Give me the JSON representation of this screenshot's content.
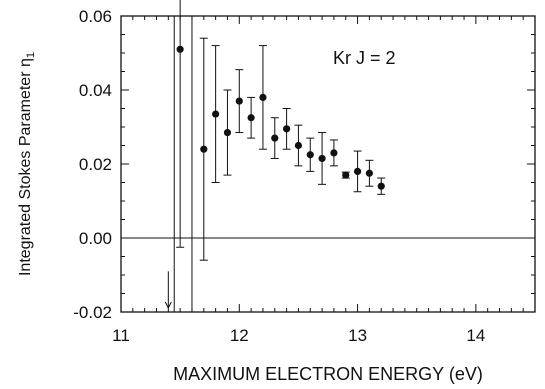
{
  "chart_data": {
    "type": "scatter",
    "title": "",
    "xlabel": "MAXIMUM ELECTRON ENERGY (eV)",
    "ylabel": "Integrated Stokes Parameter η",
    "ylabel_subscript": "1",
    "annotation": "Kr J = 2",
    "xlim": [
      11,
      14.5
    ],
    "ylim": [
      -0.02,
      0.06
    ],
    "x_ticks": [
      11,
      12,
      13,
      14
    ],
    "x_tick_labels": [
      "11",
      "12",
      "13",
      "14"
    ],
    "y_ticks": [
      -0.02,
      0,
      0.02,
      0.04,
      0.06
    ],
    "y_tick_labels": [
      "-0.02",
      "0.00",
      "0.02",
      "0.04",
      "0.06"
    ],
    "zero_line": true,
    "grid": false,
    "arrow_x": 11.4,
    "series": [
      {
        "x": [
          11.5,
          11.7,
          11.8,
          11.9,
          12.0,
          12.1,
          12.2,
          12.3,
          12.4,
          12.5,
          12.6,
          12.7,
          12.8,
          12.9,
          13.0,
          13.1,
          13.2
        ],
        "y": [
          0.051,
          0.024,
          0.0335,
          0.0285,
          0.037,
          0.0325,
          0.038,
          0.027,
          0.0295,
          0.025,
          0.0225,
          0.0215,
          0.023,
          0.017,
          0.018,
          0.0175,
          0.014
        ],
        "err": [
          0.0535,
          0.03,
          0.0185,
          0.0115,
          0.0085,
          0.0055,
          0.014,
          0.0055,
          0.0055,
          0.0055,
          0.0045,
          0.007,
          0.0035,
          0.0008,
          0.0055,
          0.0035,
          0.0022
        ]
      }
    ],
    "vertical_lines": [
      11.45,
      11.6
    ]
  }
}
